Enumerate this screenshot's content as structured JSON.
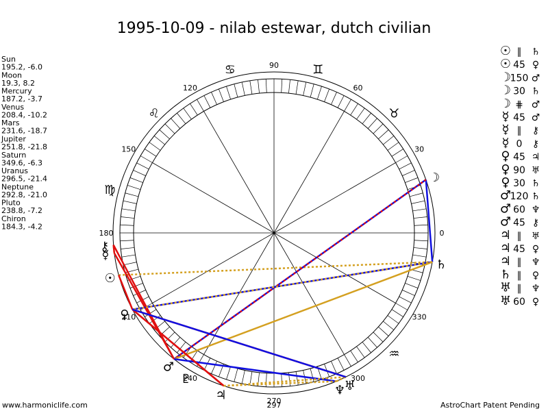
{
  "title": "1995-10-09 - nilab estewar, dutch civilian",
  "planets": [
    {
      "name": "Sun",
      "coords": "195.2, -6.0",
      "glyph": "☉"
    },
    {
      "name": "Moon",
      "coords": "19.3, 8.2",
      "glyph": "☽"
    },
    {
      "name": "Mercury",
      "coords": "187.2, -3.7",
      "glyph": "☿"
    },
    {
      "name": "Venus",
      "coords": "208.4, -10.2",
      "glyph": "♀"
    },
    {
      "name": "Mars",
      "coords": "231.6, -18.7",
      "glyph": "♂"
    },
    {
      "name": "Jupiter",
      "coords": "251.8, -21.8",
      "glyph": "♃"
    },
    {
      "name": "Saturn",
      "coords": "349.6, -6.3",
      "glyph": "♄"
    },
    {
      "name": "Uranus",
      "coords": "296.5, -21.4",
      "glyph": "♅"
    },
    {
      "name": "Neptune",
      "coords": "292.8, -21.0",
      "glyph": "♆"
    },
    {
      "name": "Pluto",
      "coords": "238.8, -7.2",
      "glyph": "♇"
    },
    {
      "name": "Chiron",
      "coords": "184.3, -4.2",
      "glyph": "⚷"
    }
  ],
  "aspects": [
    {
      "p1": "☉",
      "aspect": "∥",
      "p2": "♄",
      "color": "#d4a020",
      "style": "dotted"
    },
    {
      "p1": "☉",
      "aspect": "45",
      "p2": "♀",
      "color": "#e01010",
      "style": "solid"
    },
    {
      "p1": "☽",
      "aspect": "150",
      "p2": "♂",
      "color": "#1010e0",
      "style": "solid"
    },
    {
      "p1": "☽",
      "aspect": "30",
      "p2": "♄",
      "color": "#1010e0",
      "style": "solid"
    },
    {
      "p1": "☽",
      "aspect": "⋕",
      "p2": "♂",
      "color": "#e01010",
      "style": "dotted"
    },
    {
      "p1": "☿",
      "aspect": "45",
      "p2": "♂",
      "color": "#e01010",
      "style": "solid"
    },
    {
      "p1": "☿",
      "aspect": "∥",
      "p2": "⚷",
      "color": "#d4a020",
      "style": "dotted"
    },
    {
      "p1": "☿",
      "aspect": "0",
      "p2": "⚷",
      "color": "#e01010",
      "style": "solid"
    },
    {
      "p1": "♀",
      "aspect": "45",
      "p2": "♃",
      "color": "#e01010",
      "style": "solid"
    },
    {
      "p1": "♀",
      "aspect": "90",
      "p2": "♅",
      "color": "#e01010",
      "style": "solid"
    },
    {
      "p1": "♀",
      "aspect": "30",
      "p2": "♄",
      "color": "#1010e0",
      "style": "solid"
    },
    {
      "p1": "♂",
      "aspect": "120",
      "p2": "♄",
      "color": "#d4a020",
      "style": "solid"
    },
    {
      "p1": "♂",
      "aspect": "60",
      "p2": "♆",
      "color": "#1010e0",
      "style": "solid"
    },
    {
      "p1": "♂",
      "aspect": "45",
      "p2": "⚷",
      "color": "#e01010",
      "style": "solid"
    },
    {
      "p1": "♃",
      "aspect": "∥",
      "p2": "♅",
      "color": "#d4a020",
      "style": "dotted"
    },
    {
      "p1": "♃",
      "aspect": "45",
      "p2": "♀",
      "color": "#e01010",
      "style": "solid"
    },
    {
      "p1": "♃",
      "aspect": "∥",
      "p2": "♆",
      "color": "#d4a020",
      "style": "dotted"
    },
    {
      "p1": "♄",
      "aspect": "∥",
      "p2": "♀",
      "color": "#d4a020",
      "style": "dotted"
    },
    {
      "p1": "♅",
      "aspect": "∥",
      "p2": "♆",
      "color": "#d4a020",
      "style": "dotted"
    },
    {
      "p1": "♅",
      "aspect": "60",
      "p2": "♀",
      "color": "#1010e0",
      "style": "solid"
    }
  ],
  "degree_labels": [
    "0",
    "30",
    "60",
    "90",
    "120",
    "150",
    "180",
    "210",
    "240",
    "270",
    "300",
    "330"
  ],
  "marker_label": "297",
  "signs": [
    "♉",
    "♊",
    "♋",
    "♌",
    "♍",
    "♒"
  ],
  "footer": {
    "left": "www.harmoniclife.com",
    "right": "AstroChart Patent Pending"
  }
}
